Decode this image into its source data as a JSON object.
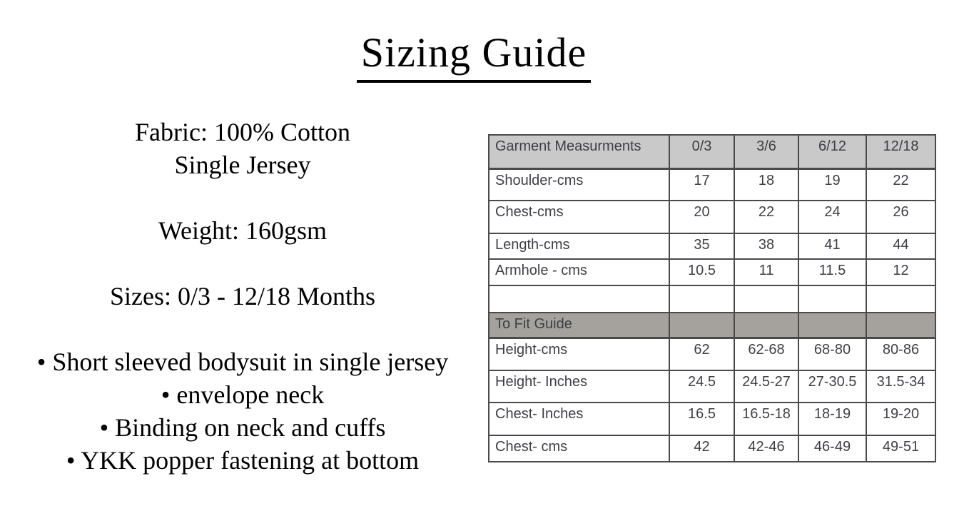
{
  "title": "Sizing Guide",
  "details": {
    "fabric_line1": "Fabric: 100% Cotton",
    "fabric_line2": "Single Jersey",
    "weight": "Weight: 160gsm",
    "sizes": "Sizes: 0/3 - 12/18 Months",
    "bullets": [
      "• Short sleeved bodysuit in single jersey",
      "• envelope neck",
      "• Binding on neck and cuffs",
      "• YKK popper fastening at bottom"
    ]
  },
  "table": {
    "header": [
      "Garment Measurments",
      "0/3",
      "3/6",
      "6/12",
      "12/18"
    ],
    "rows": [
      {
        "type": "data",
        "label": "Shoulder-cms",
        "values": [
          "17",
          "18",
          "19",
          "22"
        ]
      },
      {
        "type": "data",
        "label": "Chest-cms",
        "values": [
          "20",
          "22",
          "24",
          "26"
        ]
      },
      {
        "type": "data",
        "label": "Length-cms",
        "values": [
          "35",
          "38",
          "41",
          "44"
        ]
      },
      {
        "type": "data",
        "label": "Armhole - cms",
        "values": [
          "10.5",
          "11",
          "11.5",
          "12"
        ]
      },
      {
        "type": "empty",
        "label": "",
        "values": [
          "",
          "",
          "",
          ""
        ]
      },
      {
        "type": "section",
        "label": "To Fit Guide",
        "values": [
          "",
          "",
          "",
          ""
        ]
      },
      {
        "type": "data",
        "label": "Height-cms",
        "values": [
          "62",
          "62-68",
          "68-80",
          "80-86"
        ]
      },
      {
        "type": "data",
        "label": "Height- Inches",
        "values": [
          "24.5",
          "24.5-27",
          "27-30.5",
          "31.5-34"
        ]
      },
      {
        "type": "data",
        "label": "Chest- Inches",
        "values": [
          "16.5",
          "16.5-18",
          "18-19",
          "19-20"
        ]
      },
      {
        "type": "data",
        "label": "Chest- cms",
        "values": [
          "42",
          "42-46",
          "46-49",
          "49-51"
        ]
      }
    ],
    "colors": {
      "header_bg": "#c9c9c9",
      "section_bg": "#a5a19c",
      "border": "#4a4a4a",
      "text": "#3f4045"
    }
  }
}
